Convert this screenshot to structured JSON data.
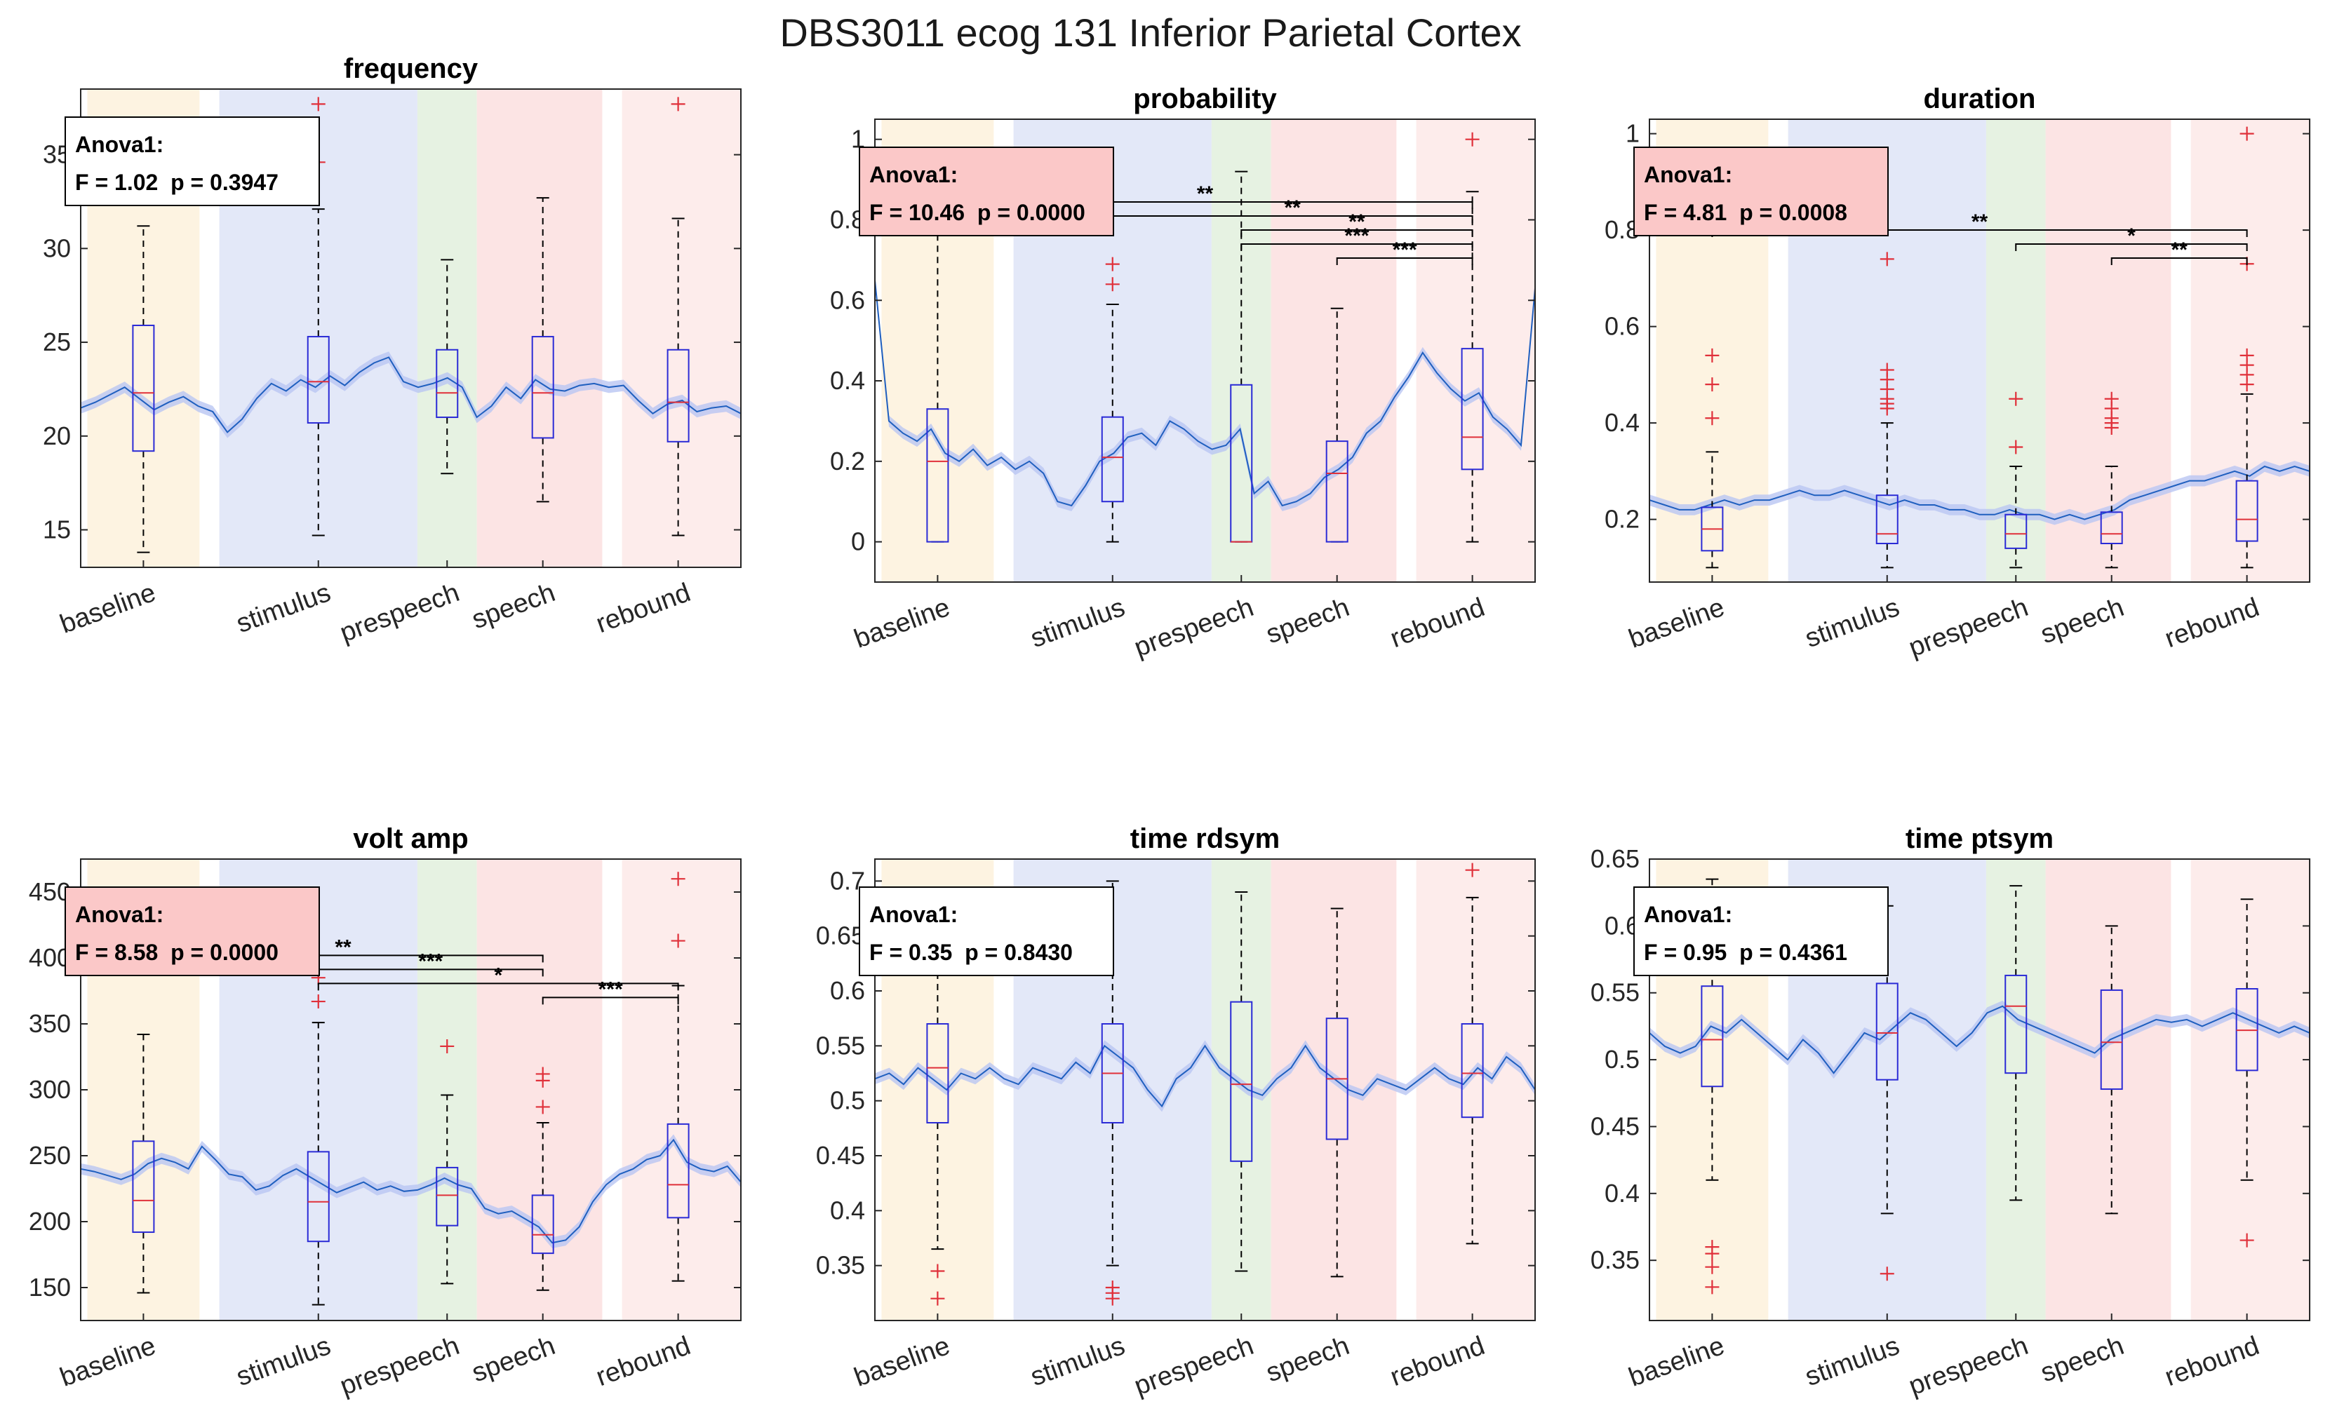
{
  "figure": {
    "title": "DBS3011 ecog 131 Inferior Parietal Cortex"
  },
  "colors": {
    "baseline": "#fdf3e1",
    "stimulus": "#e3e8f8",
    "prespeech": "#e6f2e2",
    "speech": "#fce4e4",
    "rebound": "#fdeceb",
    "box": "#2b2bd6",
    "median": "#e0303a",
    "outlier": "#e0303a",
    "trace": "#1f5fbf",
    "trace_band": "#b9c6f3",
    "anova_sig_bg": "#fbc8c8",
    "anova_ns_bg": "#ffffff"
  },
  "chart_data": [
    {
      "type": "box",
      "title": "frequency",
      "categories": [
        "baseline",
        "stimulus",
        "prespeech",
        "speech",
        "rebound"
      ],
      "ylim": [
        13,
        38.5
      ],
      "yticks": [
        15,
        20,
        25,
        30,
        35
      ],
      "anova": {
        "label": "Anova1:",
        "stat": "F = 1.02  p = 0.3947",
        "significant": false
      },
      "boxes": [
        {
          "q1": 19.2,
          "median": 22.3,
          "q3": 25.9,
          "lo": 13.8,
          "hi": 31.2,
          "outliers": []
        },
        {
          "q1": 20.7,
          "median": 22.9,
          "q3": 25.3,
          "lo": 14.7,
          "hi": 32.1,
          "outliers": [
            34.6,
            37.7
          ]
        },
        {
          "q1": 21.0,
          "median": 22.3,
          "q3": 24.6,
          "lo": 18.0,
          "hi": 29.4,
          "outliers": []
        },
        {
          "q1": 19.9,
          "median": 22.3,
          "q3": 25.3,
          "lo": 16.5,
          "hi": 32.7,
          "outliers": []
        },
        {
          "q1": 19.7,
          "median": 21.8,
          "q3": 24.6,
          "lo": 14.7,
          "hi": 31.6,
          "outliers": [
            37.7
          ]
        }
      ],
      "trace": [
        21.5,
        21.8,
        22.2,
        22.6,
        22.0,
        21.4,
        21.8,
        22.1,
        21.6,
        21.3,
        20.2,
        20.9,
        22.0,
        22.8,
        22.4,
        23.0,
        22.6,
        23.2,
        22.7,
        23.4,
        23.9,
        24.2,
        22.9,
        22.6,
        22.8,
        23.1,
        22.6,
        21.0,
        21.6,
        22.6,
        22.0,
        23.0,
        22.5,
        22.4,
        22.7,
        22.8,
        22.6,
        22.7,
        21.9,
        21.2,
        21.7,
        21.9,
        21.3,
        21.5,
        21.6,
        21.2
      ],
      "significance": []
    },
    {
      "type": "box",
      "title": "probability",
      "categories": [
        "baseline",
        "stimulus",
        "prespeech",
        "speech",
        "rebound"
      ],
      "ylim": [
        -0.1,
        1.05
      ],
      "yticks": [
        0,
        0.2,
        0.4,
        0.6,
        0.8,
        1
      ],
      "anova": {
        "label": "Anova1:",
        "stat": "F = 10.46  p = 0.0000",
        "significant": true
      },
      "boxes": [
        {
          "q1": 0.0,
          "median": 0.2,
          "q3": 0.33,
          "lo": 0.0,
          "hi": 0.8,
          "outliers": []
        },
        {
          "q1": 0.1,
          "median": 0.21,
          "q3": 0.31,
          "lo": 0.0,
          "hi": 0.59,
          "outliers": [
            0.64,
            0.69
          ]
        },
        {
          "q1": 0.0,
          "median": 0.0,
          "q3": 0.39,
          "lo": 0.0,
          "hi": 0.92,
          "outliers": []
        },
        {
          "q1": 0.0,
          "median": 0.17,
          "q3": 0.25,
          "lo": 0.0,
          "hi": 0.58,
          "outliers": []
        },
        {
          "q1": 0.18,
          "median": 0.26,
          "q3": 0.48,
          "lo": 0.0,
          "hi": 0.87,
          "outliers": [
            1.0
          ]
        }
      ],
      "trace": [
        0.65,
        0.3,
        0.27,
        0.25,
        0.28,
        0.22,
        0.2,
        0.23,
        0.19,
        0.21,
        0.18,
        0.2,
        0.17,
        0.1,
        0.09,
        0.14,
        0.2,
        0.22,
        0.26,
        0.27,
        0.24,
        0.3,
        0.28,
        0.25,
        0.23,
        0.24,
        0.28,
        0.12,
        0.15,
        0.09,
        0.1,
        0.12,
        0.16,
        0.18,
        0.21,
        0.27,
        0.3,
        0.36,
        0.41,
        0.47,
        0.42,
        0.38,
        0.35,
        0.37,
        0.31,
        0.28,
        0.24,
        0.63
      ],
      "significance": [
        {
          "from": "baseline",
          "to": "rebound",
          "stars": "**"
        },
        {
          "from": "stimulus",
          "to": "rebound",
          "stars": "**"
        },
        {
          "from": "prespeech",
          "to": "rebound",
          "stars": "**"
        },
        {
          "from": "prespeech",
          "to": "rebound",
          "stars": "***"
        },
        {
          "from": "speech",
          "to": "rebound",
          "stars": "***"
        }
      ]
    },
    {
      "type": "box",
      "title": "duration",
      "categories": [
        "baseline",
        "stimulus",
        "prespeech",
        "speech",
        "rebound"
      ],
      "ylim": [
        0.07,
        1.03
      ],
      "yticks": [
        0.2,
        0.4,
        0.6,
        0.8,
        1
      ],
      "anova": {
        "label": "Anova1:",
        "stat": "F = 4.81  p = 0.0008",
        "significant": true
      },
      "boxes": [
        {
          "q1": 0.135,
          "median": 0.18,
          "q3": 0.225,
          "lo": 0.1,
          "hi": 0.34,
          "outliers": [
            0.41,
            0.48,
            0.54
          ]
        },
        {
          "q1": 0.15,
          "median": 0.17,
          "q3": 0.25,
          "lo": 0.1,
          "hi": 0.4,
          "outliers": [
            0.43,
            0.44,
            0.45,
            0.47,
            0.49,
            0.51,
            0.74
          ]
        },
        {
          "q1": 0.14,
          "median": 0.17,
          "q3": 0.21,
          "lo": 0.1,
          "hi": 0.31,
          "outliers": [
            0.35,
            0.45
          ]
        },
        {
          "q1": 0.15,
          "median": 0.17,
          "q3": 0.215,
          "lo": 0.1,
          "hi": 0.31,
          "outliers": [
            0.39,
            0.4,
            0.41,
            0.43,
            0.45
          ]
        },
        {
          "q1": 0.155,
          "median": 0.2,
          "q3": 0.28,
          "lo": 0.1,
          "hi": 0.46,
          "outliers": [
            0.48,
            0.5,
            0.52,
            0.54,
            0.73,
            1.0
          ]
        }
      ],
      "trace": [
        0.24,
        0.23,
        0.22,
        0.22,
        0.23,
        0.24,
        0.23,
        0.24,
        0.24,
        0.25,
        0.26,
        0.25,
        0.25,
        0.26,
        0.25,
        0.24,
        0.23,
        0.24,
        0.23,
        0.23,
        0.22,
        0.22,
        0.21,
        0.21,
        0.22,
        0.21,
        0.21,
        0.2,
        0.21,
        0.2,
        0.21,
        0.22,
        0.24,
        0.25,
        0.26,
        0.27,
        0.28,
        0.28,
        0.29,
        0.3,
        0.29,
        0.31,
        0.3,
        0.31,
        0.3
      ],
      "significance": [
        {
          "from": "baseline",
          "to": "rebound",
          "stars": "**"
        },
        {
          "from": "prespeech",
          "to": "rebound",
          "stars": "*"
        },
        {
          "from": "speech",
          "to": "rebound",
          "stars": "**"
        }
      ]
    },
    {
      "type": "box",
      "title": "volt amp",
      "categories": [
        "baseline",
        "stimulus",
        "prespeech",
        "speech",
        "rebound"
      ],
      "ylim": [
        125,
        475
      ],
      "yticks": [
        150,
        200,
        250,
        300,
        350,
        400,
        450
      ],
      "anova": {
        "label": "Anova1:",
        "stat": "F = 8.58  p = 0.0000",
        "significant": true
      },
      "boxes": [
        {
          "q1": 192,
          "median": 216,
          "q3": 261,
          "lo": 146,
          "hi": 342,
          "outliers": []
        },
        {
          "q1": 185,
          "median": 215,
          "q3": 253,
          "lo": 137,
          "hi": 351,
          "outliers": [
            367,
            385
          ]
        },
        {
          "q1": 197,
          "median": 220,
          "q3": 241,
          "lo": 153,
          "hi": 296,
          "outliers": [
            333
          ]
        },
        {
          "q1": 176,
          "median": 190,
          "q3": 220,
          "lo": 148,
          "hi": 275,
          "outliers": [
            287,
            307,
            312
          ]
        },
        {
          "q1": 203,
          "median": 228,
          "q3": 274,
          "lo": 155,
          "hi": 379,
          "outliers": [
            413,
            460
          ]
        }
      ],
      "trace": [
        240,
        238,
        235,
        232,
        236,
        244,
        248,
        245,
        240,
        257,
        247,
        236,
        234,
        224,
        227,
        235,
        240,
        234,
        228,
        222,
        226,
        230,
        224,
        227,
        223,
        224,
        228,
        233,
        228,
        225,
        210,
        206,
        208,
        202,
        196,
        184,
        186,
        196,
        215,
        228,
        236,
        240,
        247,
        250,
        262,
        245,
        240,
        238,
        242,
        230
      ],
      "significance": [
        {
          "from": "baseline",
          "to": "speech",
          "stars": "**"
        },
        {
          "from": "stimulus",
          "to": "speech",
          "stars": "***"
        },
        {
          "from": "stimulus",
          "to": "rebound",
          "stars": "*"
        },
        {
          "from": "speech",
          "to": "rebound",
          "stars": "***"
        }
      ]
    },
    {
      "type": "box",
      "title": "time rdsym",
      "categories": [
        "baseline",
        "stimulus",
        "prespeech",
        "speech",
        "rebound"
      ],
      "ylim": [
        0.3,
        0.72
      ],
      "yticks": [
        0.35,
        0.4,
        0.45,
        0.5,
        0.55,
        0.6,
        0.65,
        0.7
      ],
      "anova": {
        "label": "Anova1:",
        "stat": "F = 0.35  p = 0.8430",
        "significant": false
      },
      "boxes": [
        {
          "q1": 0.48,
          "median": 0.53,
          "q3": 0.57,
          "lo": 0.365,
          "hi": 0.68,
          "outliers": [
            0.32,
            0.345
          ]
        },
        {
          "q1": 0.48,
          "median": 0.525,
          "q3": 0.57,
          "lo": 0.35,
          "hi": 0.7,
          "outliers": [
            0.32,
            0.325,
            0.33
          ]
        },
        {
          "q1": 0.445,
          "median": 0.515,
          "q3": 0.59,
          "lo": 0.345,
          "hi": 0.69,
          "outliers": []
        },
        {
          "q1": 0.465,
          "median": 0.52,
          "q3": 0.575,
          "lo": 0.34,
          "hi": 0.675,
          "outliers": []
        },
        {
          "q1": 0.485,
          "median": 0.525,
          "q3": 0.57,
          "lo": 0.37,
          "hi": 0.685,
          "outliers": [
            0.71
          ]
        }
      ],
      "trace": [
        0.52,
        0.525,
        0.515,
        0.53,
        0.52,
        0.51,
        0.525,
        0.52,
        0.53,
        0.52,
        0.515,
        0.53,
        0.525,
        0.52,
        0.535,
        0.525,
        0.55,
        0.54,
        0.53,
        0.51,
        0.495,
        0.52,
        0.53,
        0.55,
        0.53,
        0.52,
        0.51,
        0.505,
        0.52,
        0.53,
        0.55,
        0.53,
        0.52,
        0.51,
        0.505,
        0.52,
        0.515,
        0.51,
        0.52,
        0.53,
        0.52,
        0.515,
        0.53,
        0.52,
        0.54,
        0.53,
        0.51
      ],
      "significance": []
    },
    {
      "type": "box",
      "title": "time ptsym",
      "categories": [
        "baseline",
        "stimulus",
        "prespeech",
        "speech",
        "rebound"
      ],
      "ylim": [
        0.305,
        0.65
      ],
      "yticks": [
        0.35,
        0.4,
        0.45,
        0.5,
        0.55,
        0.6,
        0.65
      ],
      "anova": {
        "label": "Anova1:",
        "stat": "F = 0.95  p = 0.4361",
        "significant": false
      },
      "boxes": [
        {
          "q1": 0.48,
          "median": 0.515,
          "q3": 0.555,
          "lo": 0.41,
          "hi": 0.635,
          "outliers": [
            0.33,
            0.345,
            0.355,
            0.36
          ]
        },
        {
          "q1": 0.485,
          "median": 0.52,
          "q3": 0.557,
          "lo": 0.385,
          "hi": 0.615,
          "outliers": [
            0.34
          ]
        },
        {
          "q1": 0.49,
          "median": 0.54,
          "q3": 0.563,
          "lo": 0.395,
          "hi": 0.63,
          "outliers": []
        },
        {
          "q1": 0.478,
          "median": 0.513,
          "q3": 0.552,
          "lo": 0.385,
          "hi": 0.6,
          "outliers": []
        },
        {
          "q1": 0.492,
          "median": 0.522,
          "q3": 0.553,
          "lo": 0.41,
          "hi": 0.62,
          "outliers": [
            0.365
          ]
        }
      ],
      "trace": [
        0.52,
        0.51,
        0.505,
        0.51,
        0.525,
        0.52,
        0.53,
        0.52,
        0.51,
        0.5,
        0.515,
        0.505,
        0.49,
        0.505,
        0.52,
        0.515,
        0.525,
        0.535,
        0.53,
        0.52,
        0.51,
        0.52,
        0.535,
        0.54,
        0.53,
        0.525,
        0.52,
        0.515,
        0.51,
        0.505,
        0.515,
        0.52,
        0.525,
        0.53,
        0.528,
        0.53,
        0.525,
        0.53,
        0.535,
        0.53,
        0.525,
        0.52,
        0.525,
        0.52
      ],
      "significance": []
    }
  ]
}
